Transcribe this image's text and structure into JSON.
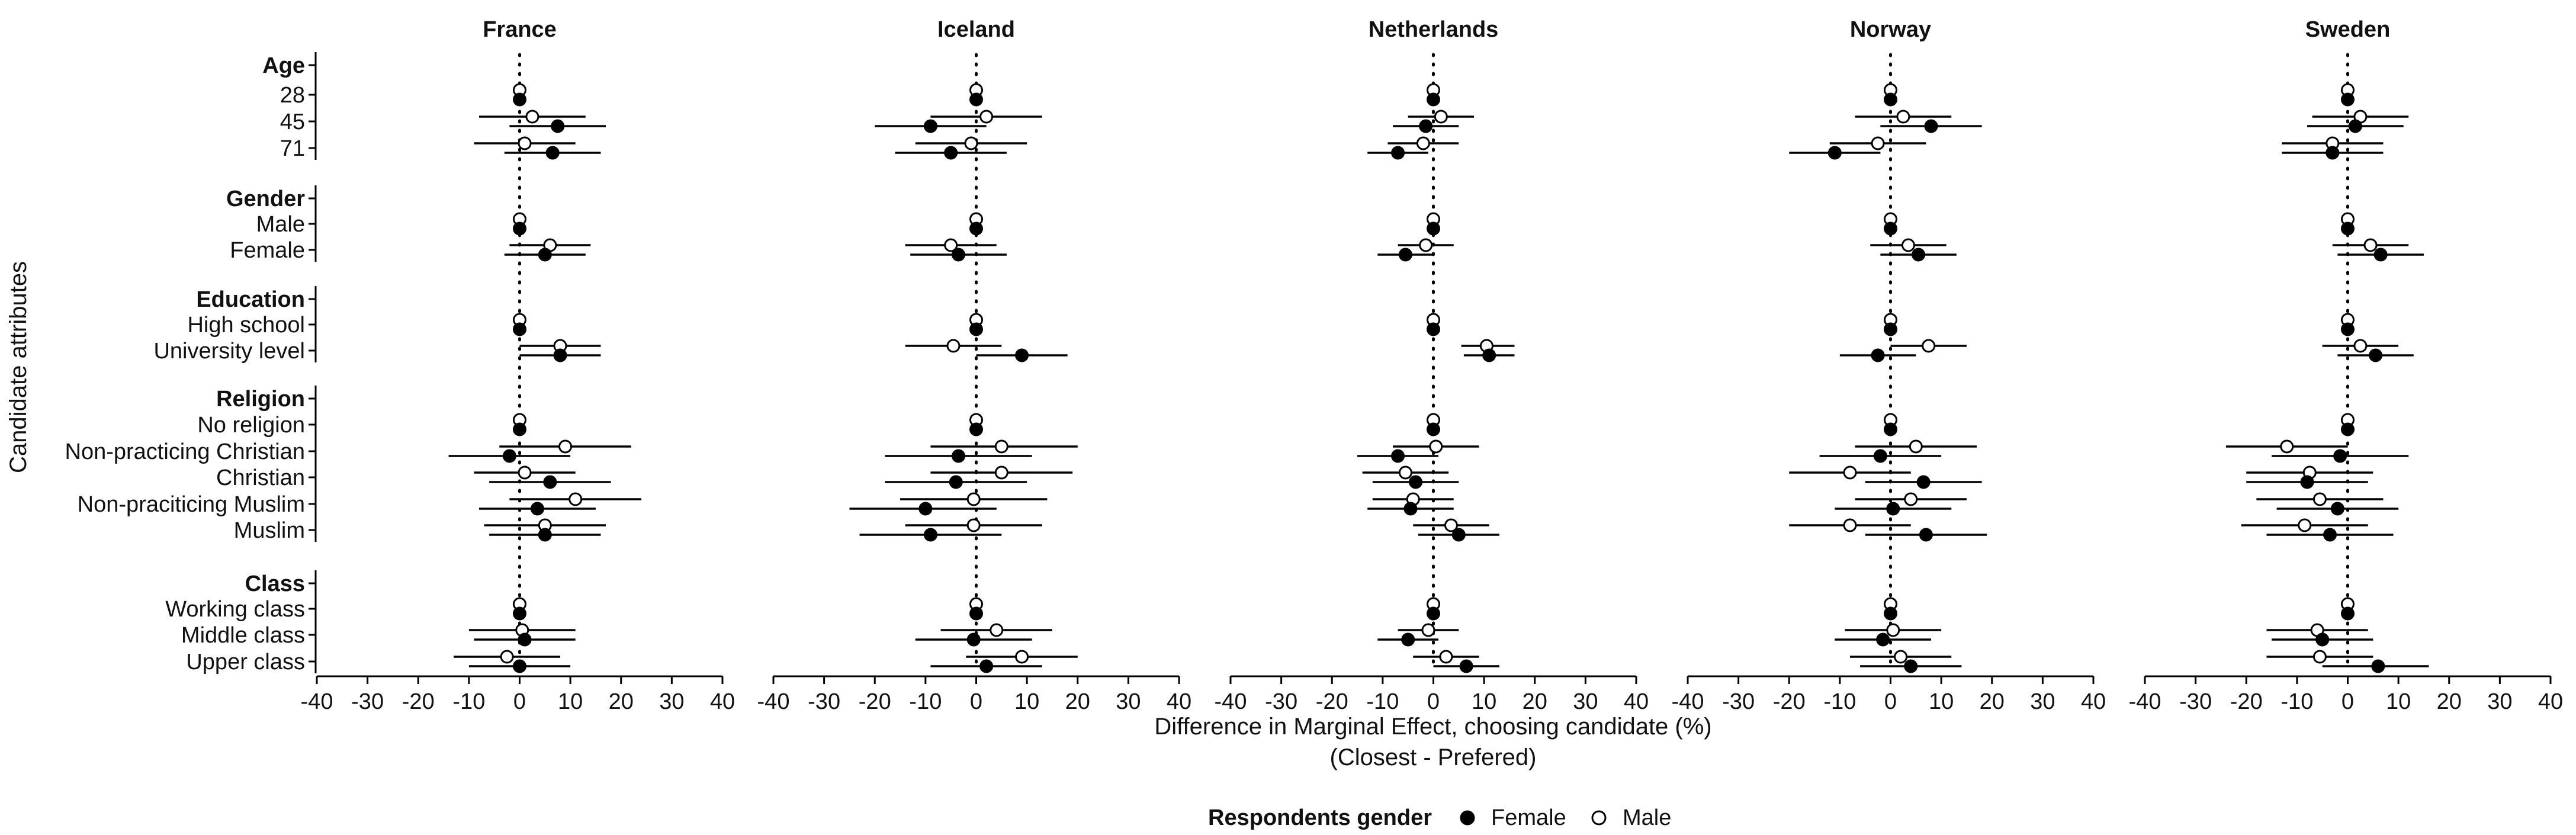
{
  "chart_data": {
    "type": "scatter",
    "subtype": "coefficient-plot-with-error-bars",
    "xlabel": "Difference in Marginal Effect, choosing candidate (%)",
    "xlabel2": "(Closest - Prefered)",
    "ylabel": "Candidate attributes",
    "xlim": [
      -40,
      40
    ],
    "xticks": [
      -40,
      -30,
      -20,
      -10,
      0,
      10,
      20,
      30,
      40
    ],
    "reference_line": 0,
    "legend": {
      "title": "Respondents gender",
      "position": "bottom",
      "entries": [
        "Female",
        "Male"
      ]
    },
    "groups": [
      {
        "title": "Age",
        "levels": [
          "28",
          "45",
          "71"
        ]
      },
      {
        "title": "Gender",
        "levels": [
          "Male",
          "Female"
        ]
      },
      {
        "title": "Education",
        "levels": [
          "High school",
          "University level"
        ]
      },
      {
        "title": "Religion",
        "levels": [
          "No religion",
          "Non-practicing Christian",
          "Christian",
          "Non-praciticing Muslim",
          "Muslim"
        ]
      },
      {
        "title": "Class",
        "levels": [
          "Working class",
          "Middle class",
          "Upper class"
        ]
      }
    ],
    "series_names": [
      "Male",
      "Female"
    ],
    "panels": [
      {
        "title": "France",
        "points": [
          {
            "Male": [
              0,
              0,
              0
            ],
            "Female": [
              0,
              0,
              0
            ]
          },
          {
            "Male": [
              2.5,
              -8,
              13
            ],
            "Female": [
              7.5,
              -2,
              17
            ]
          },
          {
            "Male": [
              1,
              -9,
              11
            ],
            "Female": [
              6.5,
              -3,
              16
            ]
          },
          {
            "Male": [
              0,
              0,
              0
            ],
            "Female": [
              0,
              0,
              0
            ]
          },
          {
            "Male": [
              6,
              -2,
              14
            ],
            "Female": [
              5,
              -3,
              13
            ]
          },
          {
            "Male": [
              0,
              0,
              0
            ],
            "Female": [
              0,
              0,
              0
            ]
          },
          {
            "Male": [
              8,
              0,
              16
            ],
            "Female": [
              8,
              0,
              16
            ]
          },
          {
            "Male": [
              0,
              0,
              0
            ],
            "Female": [
              0,
              0,
              0
            ]
          },
          {
            "Male": [
              9,
              -4,
              22
            ],
            "Female": [
              -2,
              -14,
              10
            ]
          },
          {
            "Male": [
              1,
              -9,
              11
            ],
            "Female": [
              6,
              -6,
              18
            ]
          },
          {
            "Male": [
              11,
              -2,
              24
            ],
            "Female": [
              3.5,
              -8,
              15
            ]
          },
          {
            "Male": [
              5,
              -7,
              17
            ],
            "Female": [
              5,
              -6,
              16
            ]
          },
          {
            "Male": [
              0,
              0,
              0
            ],
            "Female": [
              0,
              0,
              0
            ]
          },
          {
            "Male": [
              0.5,
              -10,
              11
            ],
            "Female": [
              1,
              -9,
              11
            ]
          },
          {
            "Male": [
              -2.5,
              -13,
              8
            ],
            "Female": [
              0,
              -10,
              10
            ]
          }
        ]
      },
      {
        "title": "Iceland",
        "points": [
          {
            "Male": [
              0,
              0,
              0
            ],
            "Female": [
              0,
              0,
              0
            ]
          },
          {
            "Male": [
              2,
              -9,
              13
            ],
            "Female": [
              -9,
              -20,
              2
            ]
          },
          {
            "Male": [
              -1,
              -12,
              10
            ],
            "Female": [
              -5,
              -16,
              6
            ]
          },
          {
            "Male": [
              0,
              0,
              0
            ],
            "Female": [
              0,
              0,
              0
            ]
          },
          {
            "Male": [
              -5,
              -14,
              4
            ],
            "Female": [
              -3.5,
              -13,
              6
            ]
          },
          {
            "Male": [
              0,
              0,
              0
            ],
            "Female": [
              0,
              0,
              0
            ]
          },
          {
            "Male": [
              -4.5,
              -14,
              5
            ],
            "Female": [
              9,
              0,
              18
            ]
          },
          {
            "Male": [
              0,
              0,
              0
            ],
            "Female": [
              0,
              0,
              0
            ]
          },
          {
            "Male": [
              5,
              -9,
              20
            ],
            "Female": [
              -3.5,
              -18,
              11
            ]
          },
          {
            "Male": [
              5,
              -9,
              19
            ],
            "Female": [
              -4,
              -18,
              10
            ]
          },
          {
            "Male": [
              -0.5,
              -15,
              14
            ],
            "Female": [
              -10,
              -25,
              4
            ]
          },
          {
            "Male": [
              -0.5,
              -14,
              13
            ],
            "Female": [
              -9,
              -23,
              5
            ]
          },
          {
            "Male": [
              0,
              0,
              0
            ],
            "Female": [
              0,
              0,
              0
            ]
          },
          {
            "Male": [
              4,
              -7,
              15
            ],
            "Female": [
              -0.5,
              -12,
              11
            ]
          },
          {
            "Male": [
              9,
              -2,
              20
            ],
            "Female": [
              2,
              -9,
              13
            ]
          }
        ]
      },
      {
        "title": "Netherlands",
        "points": [
          {
            "Male": [
              0,
              0,
              0
            ],
            "Female": [
              0,
              0,
              0
            ]
          },
          {
            "Male": [
              1.5,
              -5,
              8
            ],
            "Female": [
              -1.5,
              -8,
              5
            ]
          },
          {
            "Male": [
              -2,
              -9,
              5
            ],
            "Female": [
              -7,
              -13,
              -1
            ]
          },
          {
            "Male": [
              0,
              0,
              0
            ],
            "Female": [
              0,
              0,
              0
            ]
          },
          {
            "Male": [
              -1.5,
              -7,
              4
            ],
            "Female": [
              -5.5,
              -11,
              0
            ]
          },
          {
            "Male": [
              0,
              0,
              0
            ],
            "Female": [
              0,
              0,
              0
            ]
          },
          {
            "Male": [
              10.5,
              5.5,
              16
            ],
            "Female": [
              11,
              6,
              16
            ]
          },
          {
            "Male": [
              0,
              0,
              0
            ],
            "Female": [
              0,
              0,
              0
            ]
          },
          {
            "Male": [
              0.5,
              -8,
              9
            ],
            "Female": [
              -7,
              -15,
              1
            ]
          },
          {
            "Male": [
              -5.5,
              -14,
              3
            ],
            "Female": [
              -3.5,
              -12,
              5
            ]
          },
          {
            "Male": [
              -4,
              -12,
              4
            ],
            "Female": [
              -4.5,
              -13,
              4
            ]
          },
          {
            "Male": [
              3.5,
              -4,
              11
            ],
            "Female": [
              5,
              -3,
              13
            ]
          },
          {
            "Male": [
              0,
              0,
              0
            ],
            "Female": [
              0,
              0,
              0
            ]
          },
          {
            "Male": [
              -1,
              -7,
              5
            ],
            "Female": [
              -5,
              -11,
              1
            ]
          },
          {
            "Male": [
              2.5,
              -4,
              9
            ],
            "Female": [
              6.5,
              0,
              13
            ]
          }
        ]
      },
      {
        "title": "Norway",
        "points": [
          {
            "Male": [
              0,
              0,
              0
            ],
            "Female": [
              0,
              0,
              0
            ]
          },
          {
            "Male": [
              2.5,
              -7,
              12
            ],
            "Female": [
              8,
              -2,
              18
            ]
          },
          {
            "Male": [
              -2.5,
              -12,
              7
            ],
            "Female": [
              -11,
              -20,
              -2
            ]
          },
          {
            "Male": [
              0,
              0,
              0
            ],
            "Female": [
              0,
              0,
              0
            ]
          },
          {
            "Male": [
              3.5,
              -4,
              11
            ],
            "Female": [
              5.5,
              -2,
              13
            ]
          },
          {
            "Male": [
              0,
              0,
              0
            ],
            "Female": [
              0,
              0,
              0
            ]
          },
          {
            "Male": [
              7.5,
              0,
              15
            ],
            "Female": [
              -2.5,
              -10,
              5
            ]
          },
          {
            "Male": [
              0,
              0,
              0
            ],
            "Female": [
              0,
              0,
              0
            ]
          },
          {
            "Male": [
              5,
              -7,
              17
            ],
            "Female": [
              -2,
              -14,
              10
            ]
          },
          {
            "Male": [
              -8,
              -20,
              4
            ],
            "Female": [
              6.5,
              -5,
              18
            ]
          },
          {
            "Male": [
              4,
              -7,
              15
            ],
            "Female": [
              0.5,
              -11,
              12
            ]
          },
          {
            "Male": [
              -8,
              -20,
              4
            ],
            "Female": [
              7,
              -5,
              19
            ]
          },
          {
            "Male": [
              0,
              0,
              0
            ],
            "Female": [
              0,
              0,
              0
            ]
          },
          {
            "Male": [
              0.5,
              -9,
              10
            ],
            "Female": [
              -1.5,
              -11,
              8
            ]
          },
          {
            "Male": [
              2,
              -8,
              12
            ],
            "Female": [
              4,
              -6,
              14
            ]
          }
        ]
      },
      {
        "title": "Sweden",
        "points": [
          {
            "Male": [
              0,
              0,
              0
            ],
            "Female": [
              0,
              0,
              0
            ]
          },
          {
            "Male": [
              2.5,
              -7,
              12
            ],
            "Female": [
              1.5,
              -8,
              11
            ]
          },
          {
            "Male": [
              -3,
              -13,
              7
            ],
            "Female": [
              -3,
              -13,
              7
            ]
          },
          {
            "Male": [
              0,
              0,
              0
            ],
            "Female": [
              0,
              0,
              0
            ]
          },
          {
            "Male": [
              4.5,
              -3,
              12
            ],
            "Female": [
              6.5,
              -2,
              15
            ]
          },
          {
            "Male": [
              0,
              0,
              0
            ],
            "Female": [
              0,
              0,
              0
            ]
          },
          {
            "Male": [
              2.5,
              -5,
              10
            ],
            "Female": [
              5.5,
              -2,
              13
            ]
          },
          {
            "Male": [
              0,
              0,
              0
            ],
            "Female": [
              0,
              0,
              0
            ]
          },
          {
            "Male": [
              -12,
              -24,
              0
            ],
            "Female": [
              -1.5,
              -15,
              12
            ]
          },
          {
            "Male": [
              -7.5,
              -20,
              5
            ],
            "Female": [
              -8,
              -20,
              4
            ]
          },
          {
            "Male": [
              -5.5,
              -18,
              7
            ],
            "Female": [
              -2,
              -14,
              10
            ]
          },
          {
            "Male": [
              -8.5,
              -21,
              4
            ],
            "Female": [
              -3.5,
              -16,
              9
            ]
          },
          {
            "Male": [
              0,
              0,
              0
            ],
            "Female": [
              0,
              0,
              0
            ]
          },
          {
            "Male": [
              -6,
              -16,
              4
            ],
            "Female": [
              -5,
              -15,
              5
            ]
          },
          {
            "Male": [
              -5.5,
              -16,
              5
            ],
            "Female": [
              6,
              -5,
              16
            ]
          }
        ]
      }
    ]
  }
}
